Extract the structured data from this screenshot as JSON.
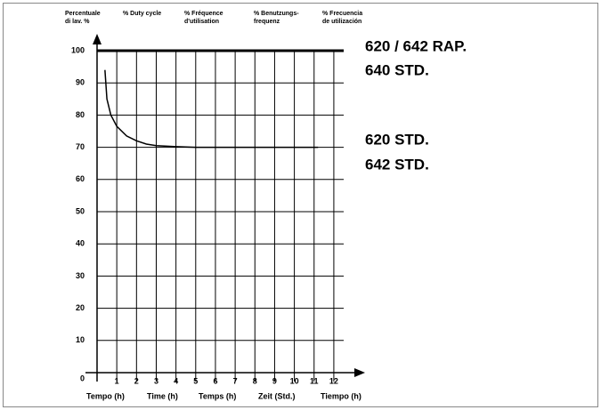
{
  "chart_data": {
    "type": "line",
    "y_labels": [
      [
        "Percentuale",
        "di lav. %"
      ],
      [
        "% Duty cycle"
      ],
      [
        "% Fréquence",
        "d'utilisation"
      ],
      [
        "% Benutzungs-",
        "frequenz"
      ],
      [
        "% Frecuencia",
        "de utilización"
      ]
    ],
    "x_labels": [
      "Tempo (h)",
      "Time (h)",
      "Temps (h)",
      "Zeit (Std.)",
      "Tiempo (h)"
    ],
    "xlim": [
      0,
      12.5
    ],
    "ylim": [
      0,
      100
    ],
    "xticks": [
      1,
      2,
      3,
      4,
      5,
      6,
      7,
      8,
      9,
      10,
      11,
      12
    ],
    "yticks": [
      0,
      10,
      20,
      30,
      40,
      50,
      60,
      70,
      80,
      90,
      100
    ],
    "grid": true,
    "series": [
      {
        "labels": [
          "620 / 642 RAP.",
          "640 STD."
        ],
        "color": "#000000",
        "x": [
          0,
          12.5
        ],
        "values": [
          100,
          100
        ]
      },
      {
        "labels": [
          "620 STD.",
          "642 STD."
        ],
        "color": "#000000",
        "x": [
          0.4,
          0.5,
          0.7,
          1,
          1.5,
          2,
          2.5,
          3,
          4,
          5,
          7,
          9,
          11.2
        ],
        "values": [
          94,
          85,
          80,
          76.5,
          73.5,
          72,
          71,
          70.5,
          70.2,
          70,
          70,
          70,
          70
        ]
      }
    ]
  }
}
